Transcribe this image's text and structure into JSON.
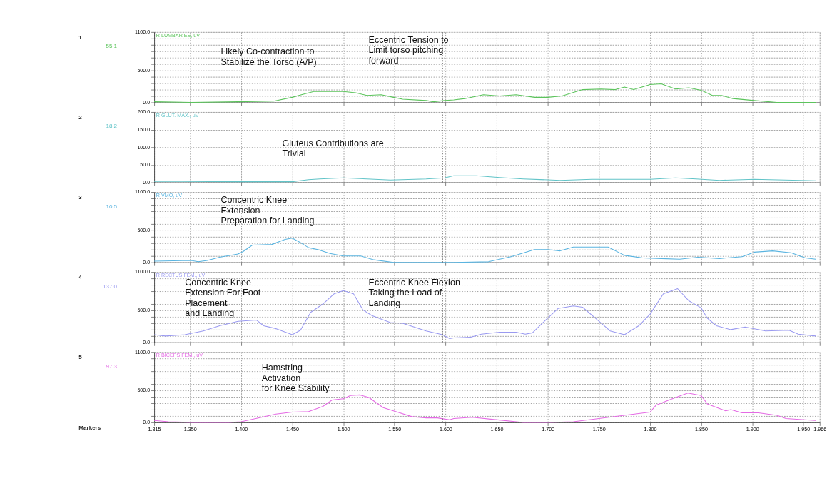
{
  "chart_data": [
    {
      "type": "line",
      "title": "R LUMBAR ES, uV",
      "xlim": [
        1.315,
        1.966
      ],
      "xticks": [
        {
          "value": 1.315,
          "label": null
        },
        {
          "value": 1.35,
          "label": null
        },
        {
          "value": 1.4,
          "label": null
        },
        {
          "value": 1.45,
          "label": null
        },
        {
          "value": 1.5,
          "label": null
        },
        {
          "value": 1.55,
          "label": null
        },
        {
          "value": 1.6,
          "label": null
        },
        {
          "value": 1.65,
          "label": null
        },
        {
          "value": 1.7,
          "label": null
        },
        {
          "value": 1.75,
          "label": null
        },
        {
          "value": 1.8,
          "label": null
        },
        {
          "value": 1.85,
          "label": null
        },
        {
          "value": 1.9,
          "label": null
        },
        {
          "value": 1.95,
          "label": null
        },
        {
          "value": 1.966,
          "label": null
        }
      ],
      "ylim": [
        0,
        1100
      ],
      "yticks": [
        {
          "value": 0,
          "label": "0.0"
        },
        {
          "value": 100,
          "label": null
        },
        {
          "value": 200,
          "label": null
        },
        {
          "value": 300,
          "label": null
        },
        {
          "value": 400,
          "label": null
        },
        {
          "value": 500,
          "label": "500.0"
        },
        {
          "value": 600,
          "label": null
        },
        {
          "value": 700,
          "label": null
        },
        {
          "value": 800,
          "label": null
        },
        {
          "value": 900,
          "label": null
        },
        {
          "value": 1000,
          "label": null
        },
        {
          "value": 1100,
          "label": "1100.0"
        }
      ],
      "grid": true,
      "tick_labels": "y",
      "ref_lines": [
        {
          "axis": "x",
          "value": 1.597,
          "line_style": "dotted",
          "color": "#555555"
        }
      ],
      "series": [
        {
          "color": "#5cc45c",
          "x": [
            1.315,
            1.351,
            1.397,
            1.432,
            1.45,
            1.459,
            1.471,
            1.489,
            1.5,
            1.512,
            1.523,
            1.537,
            1.549,
            1.558,
            1.581,
            1.588,
            1.599,
            1.608,
            1.619,
            1.637,
            1.653,
            1.669,
            1.687,
            1.7,
            1.714,
            1.734,
            1.752,
            1.766,
            1.775,
            1.784,
            1.8,
            1.811,
            1.825,
            1.838,
            1.85,
            1.861,
            1.87,
            1.881,
            1.902,
            1.924,
            1.962
          ],
          "values": [
            10,
            0,
            10,
            20,
            80,
            120,
            170,
            170,
            170,
            150,
            110,
            120,
            80,
            50,
            30,
            10,
            30,
            40,
            60,
            120,
            100,
            120,
            80,
            80,
            100,
            200,
            210,
            200,
            240,
            200,
            280,
            290,
            210,
            230,
            190,
            110,
            110,
            60,
            30,
            0,
            0
          ]
        }
      ],
      "annotations": [
        "1",
        "55.1",
        "Likely Co-contraction to\nStabilize the Torso (A/P)",
        "Eccentric Tension to\nLimit torso pitching\nforward"
      ]
    },
    {
      "type": "line",
      "title": "R GLUT. MAX., uV",
      "xlim": [
        1.315,
        1.966
      ],
      "xticks": [
        {
          "value": 1.315,
          "label": null
        },
        {
          "value": 1.35,
          "label": null
        },
        {
          "value": 1.4,
          "label": null
        },
        {
          "value": 1.45,
          "label": null
        },
        {
          "value": 1.5,
          "label": null
        },
        {
          "value": 1.55,
          "label": null
        },
        {
          "value": 1.6,
          "label": null
        },
        {
          "value": 1.65,
          "label": null
        },
        {
          "value": 1.7,
          "label": null
        },
        {
          "value": 1.75,
          "label": null
        },
        {
          "value": 1.8,
          "label": null
        },
        {
          "value": 1.85,
          "label": null
        },
        {
          "value": 1.9,
          "label": null
        },
        {
          "value": 1.95,
          "label": null
        },
        {
          "value": 1.966,
          "label": null
        }
      ],
      "ylim": [
        0,
        200
      ],
      "yticks": [
        {
          "value": 0,
          "label": "0.0"
        },
        {
          "value": 50,
          "label": "50.0"
        },
        {
          "value": 100,
          "label": "100.0"
        },
        {
          "value": 150,
          "label": "150.0"
        },
        {
          "value": 200,
          "label": "200.0"
        }
      ],
      "grid": true,
      "tick_labels": "y",
      "ref_lines": [
        {
          "axis": "x",
          "value": 1.597,
          "line_style": "dotted",
          "color": "#555555"
        }
      ],
      "series": [
        {
          "color": "#62c4c8",
          "x": [
            1.315,
            1.397,
            1.45,
            1.466,
            1.477,
            1.5,
            1.523,
            1.546,
            1.581,
            1.599,
            1.608,
            1.63,
            1.653,
            1.676,
            1.712,
            1.743,
            1.8,
            1.825,
            1.845,
            1.868,
            1.902,
            1.962
          ],
          "values": [
            3,
            2,
            2,
            8,
            10,
            13,
            10,
            7,
            10,
            13,
            19,
            19,
            14,
            10,
            6,
            9,
            9,
            13,
            10,
            6,
            9,
            5
          ]
        }
      ],
      "annotations": [
        "2",
        "18.2",
        "Gluteus Contributions are\nTrivial"
      ]
    },
    {
      "type": "line",
      "title": "R VMO, uV",
      "xlim": [
        1.315,
        1.966
      ],
      "xticks": [
        {
          "value": 1.315,
          "label": null
        },
        {
          "value": 1.35,
          "label": null
        },
        {
          "value": 1.4,
          "label": null
        },
        {
          "value": 1.45,
          "label": null
        },
        {
          "value": 1.5,
          "label": null
        },
        {
          "value": 1.55,
          "label": null
        },
        {
          "value": 1.6,
          "label": null
        },
        {
          "value": 1.65,
          "label": null
        },
        {
          "value": 1.7,
          "label": null
        },
        {
          "value": 1.75,
          "label": null
        },
        {
          "value": 1.8,
          "label": null
        },
        {
          "value": 1.85,
          "label": null
        },
        {
          "value": 1.9,
          "label": null
        },
        {
          "value": 1.95,
          "label": null
        },
        {
          "value": 1.966,
          "label": null
        }
      ],
      "ylim": [
        0,
        1100
      ],
      "yticks": [
        {
          "value": 0,
          "label": "0.0"
        },
        {
          "value": 100,
          "label": null
        },
        {
          "value": 200,
          "label": null
        },
        {
          "value": 300,
          "label": null
        },
        {
          "value": 400,
          "label": null
        },
        {
          "value": 500,
          "label": "500.0"
        },
        {
          "value": 600,
          "label": null
        },
        {
          "value": 700,
          "label": null
        },
        {
          "value": 800,
          "label": null
        },
        {
          "value": 900,
          "label": null
        },
        {
          "value": 1000,
          "label": null
        },
        {
          "value": 1100,
          "label": "1100.0"
        }
      ],
      "grid": true,
      "tick_labels": "y",
      "ref_lines": [
        {
          "axis": "x",
          "value": 1.597,
          "line_style": "dotted",
          "color": "#555555"
        }
      ],
      "series": [
        {
          "color": "#5ab4e0",
          "x": [
            1.315,
            1.351,
            1.358,
            1.367,
            1.379,
            1.397,
            1.402,
            1.411,
            1.43,
            1.443,
            1.45,
            1.459,
            1.466,
            1.475,
            1.487,
            1.5,
            1.517,
            1.53,
            1.549,
            1.581,
            1.608,
            1.642,
            1.664,
            1.687,
            1.7,
            1.712,
            1.725,
            1.734,
            1.759,
            1.775,
            1.793,
            1.811,
            1.829,
            1.847,
            1.868,
            1.89,
            1.902,
            1.92,
            1.938,
            1.952,
            1.962
          ],
          "values": [
            20,
            30,
            10,
            30,
            80,
            130,
            170,
            270,
            280,
            360,
            380,
            300,
            230,
            200,
            140,
            100,
            100,
            40,
            0,
            0,
            0,
            10,
            90,
            200,
            200,
            180,
            240,
            240,
            240,
            110,
            70,
            60,
            50,
            80,
            60,
            90,
            160,
            180,
            150,
            70,
            50
          ]
        }
      ],
      "annotations": [
        "3",
        "10.5",
        "Concentric Knee\nExtension\nPreparation for Landing"
      ]
    },
    {
      "type": "line",
      "title": "R RECTUS FEM., uV",
      "xlim": [
        1.315,
        1.966
      ],
      "xticks": [
        {
          "value": 1.315,
          "label": null
        },
        {
          "value": 1.35,
          "label": null
        },
        {
          "value": 1.4,
          "label": null
        },
        {
          "value": 1.45,
          "label": null
        },
        {
          "value": 1.5,
          "label": null
        },
        {
          "value": 1.55,
          "label": null
        },
        {
          "value": 1.6,
          "label": null
        },
        {
          "value": 1.65,
          "label": null
        },
        {
          "value": 1.7,
          "label": null
        },
        {
          "value": 1.75,
          "label": null
        },
        {
          "value": 1.8,
          "label": null
        },
        {
          "value": 1.85,
          "label": null
        },
        {
          "value": 1.9,
          "label": null
        },
        {
          "value": 1.95,
          "label": null
        },
        {
          "value": 1.966,
          "label": null
        }
      ],
      "ylim": [
        0,
        1100
      ],
      "yticks": [
        {
          "value": 0,
          "label": "0.0"
        },
        {
          "value": 100,
          "label": null
        },
        {
          "value": 200,
          "label": null
        },
        {
          "value": 300,
          "label": null
        },
        {
          "value": 400,
          "label": null
        },
        {
          "value": 500,
          "label": "500.0"
        },
        {
          "value": 600,
          "label": null
        },
        {
          "value": 700,
          "label": null
        },
        {
          "value": 800,
          "label": null
        },
        {
          "value": 900,
          "label": null
        },
        {
          "value": 1000,
          "label": null
        },
        {
          "value": 1100,
          "label": "1100.0"
        }
      ],
      "grid": true,
      "tick_labels": "y",
      "ref_lines": [
        {
          "axis": "x",
          "value": 1.597,
          "line_style": "dotted",
          "color": "#555555"
        }
      ],
      "series": [
        {
          "color": "#9a9af0",
          "x": [
            1.315,
            1.326,
            1.345,
            1.363,
            1.379,
            1.397,
            1.415,
            1.422,
            1.433,
            1.45,
            1.458,
            1.468,
            1.48,
            1.491,
            1.5,
            1.51,
            1.519,
            1.528,
            1.546,
            1.558,
            1.581,
            1.597,
            1.604,
            1.608,
            1.624,
            1.635,
            1.653,
            1.669,
            1.678,
            1.685,
            1.694,
            1.71,
            1.725,
            1.734,
            1.748,
            1.761,
            1.775,
            1.789,
            1.8,
            1.813,
            1.827,
            1.838,
            1.85,
            1.856,
            1.865,
            1.879,
            1.893,
            1.913,
            1.936,
            1.945,
            1.962
          ],
          "values": [
            120,
            100,
            120,
            180,
            260,
            330,
            350,
            260,
            220,
            120,
            190,
            470,
            600,
            760,
            810,
            760,
            510,
            420,
            310,
            300,
            180,
            120,
            60,
            70,
            80,
            130,
            160,
            160,
            130,
            150,
            290,
            530,
            570,
            550,
            360,
            180,
            120,
            260,
            440,
            760,
            840,
            650,
            540,
            380,
            260,
            200,
            240,
            180,
            190,
            130,
            100
          ]
        }
      ],
      "annotations": [
        "4",
        "137.0",
        "Concentric Knee\nExtension For Foot\nPlacement\nand Landing",
        "Eccentric Knee Flexion\nTaking the Load of\nLanding"
      ]
    },
    {
      "type": "line",
      "title": "R BICEPS FEM., uV",
      "xlim": [
        1.315,
        1.966
      ],
      "xticks": [
        {
          "value": 1.315,
          "label": "1.315"
        },
        {
          "value": 1.35,
          "label": "1.350"
        },
        {
          "value": 1.4,
          "label": "1.400"
        },
        {
          "value": 1.45,
          "label": "1.450"
        },
        {
          "value": 1.5,
          "label": "1.500"
        },
        {
          "value": 1.55,
          "label": "1.550"
        },
        {
          "value": 1.6,
          "label": "1.600"
        },
        {
          "value": 1.65,
          "label": "1.650"
        },
        {
          "value": 1.7,
          "label": "1.700"
        },
        {
          "value": 1.75,
          "label": "1.750"
        },
        {
          "value": 1.8,
          "label": "1.800"
        },
        {
          "value": 1.85,
          "label": "1.850"
        },
        {
          "value": 1.9,
          "label": "1.900"
        },
        {
          "value": 1.95,
          "label": "1.950"
        },
        {
          "value": 1.966,
          "label": "1.966"
        }
      ],
      "ylim": [
        0,
        1100
      ],
      "yticks": [
        {
          "value": 0,
          "label": "0.0"
        },
        {
          "value": 100,
          "label": null
        },
        {
          "value": 200,
          "label": null
        },
        {
          "value": 300,
          "label": null
        },
        {
          "value": 400,
          "label": null
        },
        {
          "value": 500,
          "label": "500.0"
        },
        {
          "value": 600,
          "label": null
        },
        {
          "value": 700,
          "label": null
        },
        {
          "value": 800,
          "label": null
        },
        {
          "value": 900,
          "label": null
        },
        {
          "value": 1000,
          "label": null
        },
        {
          "value": 1100,
          "label": "1100.0"
        }
      ],
      "grid": true,
      "ref_lines": [
        {
          "axis": "x",
          "value": 1.597,
          "line_style": "dotted",
          "color": "#555555"
        }
      ],
      "series": [
        {
          "color": "#e46ae4",
          "x": [
            1.315,
            1.329,
            1.351,
            1.368,
            1.388,
            1.4,
            1.42,
            1.434,
            1.45,
            1.466,
            1.48,
            1.489,
            1.5,
            1.507,
            1.516,
            1.525,
            1.539,
            1.553,
            1.567,
            1.581,
            1.592,
            1.604,
            1.608,
            1.626,
            1.651,
            1.676,
            1.7,
            1.725,
            1.75,
            1.775,
            1.8,
            1.806,
            1.82,
            1.837,
            1.85,
            1.856,
            1.874,
            1.879,
            1.89,
            1.906,
            1.924,
            1.933,
            1.962
          ],
          "values": [
            30,
            10,
            0,
            0,
            0,
            10,
            80,
            130,
            160,
            170,
            250,
            350,
            370,
            420,
            430,
            390,
            230,
            160,
            90,
            70,
            70,
            40,
            60,
            80,
            40,
            0,
            0,
            10,
            60,
            110,
            160,
            270,
            360,
            460,
            420,
            290,
            180,
            200,
            150,
            150,
            110,
            60,
            30
          ]
        }
      ],
      "annotations": [
        "5",
        "97.3",
        "Hamstring\nActivation\nfor Knee Stability",
        "Markers"
      ]
    }
  ]
}
